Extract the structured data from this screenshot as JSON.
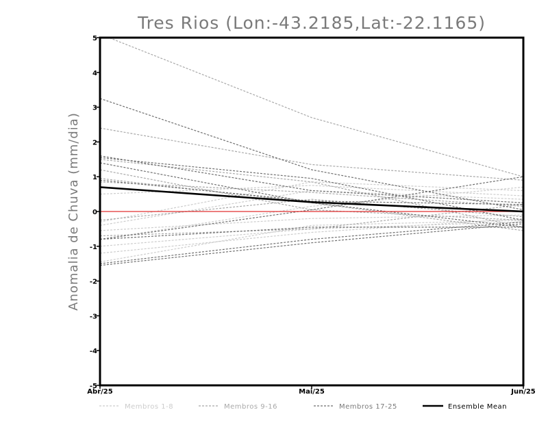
{
  "chart_data": {
    "type": "line",
    "title": "Tres Rios (Lon:-43.2185,Lat:-22.1165)",
    "ylabel": "Anomalia de Chuva (mm/dia)",
    "xlabel": "",
    "categories": [
      "Abr/25",
      "Mai/25",
      "Jun/25"
    ],
    "ylim": [
      -5,
      5
    ],
    "yticks": [
      "5",
      "4",
      "3",
      "2",
      "1",
      "0",
      "-1",
      "-2",
      "-3",
      "-4",
      "-5"
    ],
    "zero_line_color": "#e03030",
    "legend": [
      {
        "name": "Membros 1-8",
        "color": "#cccccc"
      },
      {
        "name": "Membros 9-16",
        "color": "#a8a8a8"
      },
      {
        "name": "Membros 17-25",
        "color": "#6e6e6e"
      },
      {
        "name": "Ensemble Mean",
        "color": "#000000"
      }
    ],
    "series_groups": [
      {
        "name": "Membros 1-8",
        "color": "#cccccc",
        "members": [
          [
            -0.3,
            0.85,
            0.6
          ],
          [
            -1.2,
            -0.6,
            -0.2
          ],
          [
            -1.45,
            -0.4,
            -0.25
          ],
          [
            -0.4,
            0.6,
            0.35
          ],
          [
            -0.8,
            0.15,
            0.7
          ],
          [
            -0.55,
            -0.2,
            -0.1
          ],
          [
            0.5,
            0.75,
            0.45
          ],
          [
            -1.0,
            -0.5,
            -0.3
          ]
        ]
      },
      {
        "name": "Membros 9-16",
        "color": "#a8a8a8",
        "members": [
          [
            5.1,
            2.7,
            1.0
          ],
          [
            2.4,
            1.35,
            0.9
          ],
          [
            1.5,
            0.85,
            -0.45
          ],
          [
            0.85,
            0.55,
            0.15
          ],
          [
            1.2,
            0.05,
            -0.25
          ],
          [
            -0.7,
            -0.5,
            0.2
          ],
          [
            0.95,
            0.25,
            -0.55
          ],
          [
            -0.25,
            0.35,
            -0.15
          ]
        ]
      },
      {
        "name": "Membros 17-25",
        "color": "#6e6e6e",
        "members": [
          [
            3.25,
            1.2,
            0.05
          ],
          [
            1.6,
            0.6,
            0.25
          ],
          [
            1.55,
            0.95,
            -0.25
          ],
          [
            1.4,
            0.25,
            -0.45
          ],
          [
            -0.8,
            0.05,
            1.0
          ],
          [
            -1.55,
            -0.9,
            -0.35
          ],
          [
            -0.8,
            -0.45,
            -0.45
          ],
          [
            0.9,
            0.3,
            0.2
          ],
          [
            -1.5,
            -0.8,
            -0.3
          ]
        ]
      }
    ],
    "ensemble_mean": [
      0.7,
      0.27,
      0.0
    ]
  }
}
